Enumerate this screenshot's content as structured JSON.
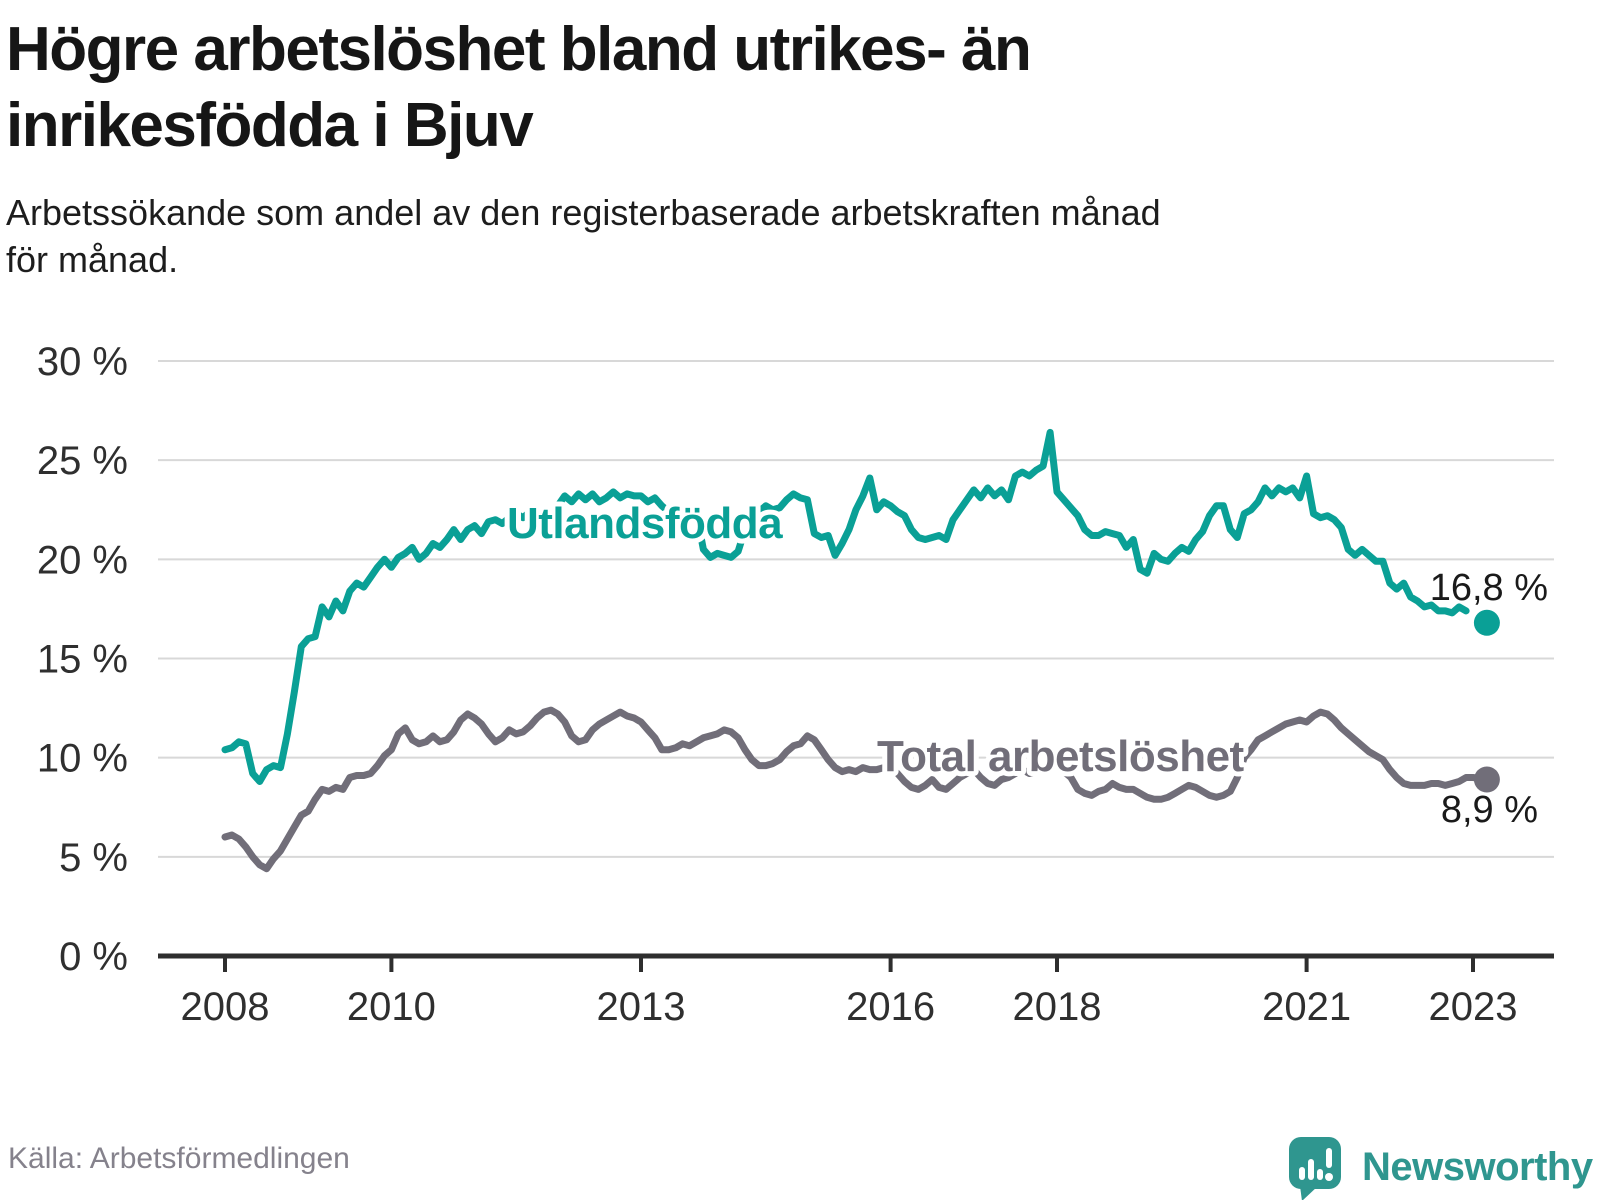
{
  "header": {
    "title_lines": [
      "Högre arbetslöshet bland utrikes- än",
      "inrikesfödda i Bjuv"
    ],
    "subtitle_lines": [
      "Arbetssökande som andel av den registerbaserade arbetskraften månad",
      "för månad."
    ]
  },
  "footer": {
    "source": "Källa: Arbetsförmedlingen",
    "brand": "Newsworthy"
  },
  "colors": {
    "teal": "#0aa096",
    "gray": "#716e79",
    "grid": "#d8d8d8",
    "axis": "#2e2e2e",
    "value_label": "#1a1a1a",
    "source_gray": "#85828c",
    "brand_teal": "#2f968f"
  },
  "chart_data": {
    "type": "line",
    "title": "Högre arbetslöshet bland utrikes- än inrikesfödda i Bjuv",
    "subtitle": "Arbetssökande som andel av den registerbaserade arbetskraften månad för månad.",
    "xlabel": "",
    "ylabel": "",
    "unit": "%",
    "grid": true,
    "legend_position": "inline-labels",
    "ylim": [
      0,
      30
    ],
    "y_ticks_pct": [
      0,
      5,
      10,
      15,
      20,
      25,
      30
    ],
    "y_tick_labels": [
      "0 %",
      "5 %",
      "10 %",
      "15 %",
      "20 %",
      "25 %",
      "30 %"
    ],
    "x_ticks": [
      2008,
      2010,
      2013,
      2016,
      2018,
      2021,
      2023
    ],
    "x_tick_labels": [
      "2008",
      "2010",
      "2013",
      "2016",
      "2018",
      "2021",
      "2023"
    ],
    "x_start": "2008-01",
    "frequency": "monthly",
    "series": [
      {
        "name": "Utlandsfödda",
        "color": "#0aa096",
        "latest": {
          "month": "2023-03",
          "value": 16.8,
          "label": "16,8 %"
        },
        "values": [
          10.4,
          10.5,
          10.8,
          10.7,
          9.2,
          8.8,
          9.4,
          9.6,
          9.5,
          11.2,
          13.3,
          15.6,
          16.0,
          16.1,
          17.6,
          17.1,
          17.9,
          17.4,
          18.4,
          18.8,
          18.6,
          19.1,
          19.6,
          20.0,
          19.6,
          20.1,
          20.3,
          20.6,
          20.0,
          20.3,
          20.8,
          20.6,
          21.0,
          21.5,
          21.0,
          21.5,
          21.7,
          21.3,
          21.9,
          22.0,
          21.8,
          22.1,
          22.3,
          22.1,
          22.4,
          22.2,
          22.5,
          22.3,
          22.7,
          23.2,
          22.9,
          23.3,
          23.0,
          23.3,
          22.9,
          23.1,
          23.4,
          23.1,
          23.3,
          23.2,
          23.2,
          22.9,
          23.1,
          22.7,
          22.4,
          22.6,
          22.5,
          22.4,
          22.3,
          20.5,
          20.1,
          20.3,
          20.2,
          20.1,
          20.4,
          21.5,
          22.5,
          22.4,
          22.7,
          22.5,
          22.6,
          23.0,
          23.3,
          23.1,
          23.0,
          21.3,
          21.1,
          21.2,
          20.2,
          20.8,
          21.5,
          22.5,
          23.2,
          24.1,
          22.5,
          22.9,
          22.7,
          22.4,
          22.2,
          21.5,
          21.1,
          21.0,
          21.1,
          21.2,
          21.0,
          22.0,
          22.5,
          23.0,
          23.5,
          23.1,
          23.6,
          23.2,
          23.5,
          23.0,
          24.2,
          24.4,
          24.2,
          24.5,
          24.7,
          26.4,
          23.4,
          23.0,
          22.6,
          22.2,
          21.5,
          21.2,
          21.2,
          21.4,
          21.3,
          21.2,
          20.6,
          21.0,
          19.5,
          19.3,
          20.3,
          20.0,
          19.9,
          20.3,
          20.6,
          20.4,
          21.0,
          21.4,
          22.2,
          22.7,
          22.7,
          21.5,
          21.1,
          22.3,
          22.5,
          22.9,
          23.6,
          23.2,
          23.6,
          23.4,
          23.6,
          23.1,
          24.2,
          22.3,
          22.1,
          22.2,
          22.0,
          21.6,
          20.5,
          20.2,
          20.5,
          20.2,
          19.9,
          19.9,
          18.8,
          18.5,
          18.8,
          18.1,
          17.9,
          17.6,
          17.7,
          17.4,
          17.4,
          17.3,
          17.6,
          17.4
        ]
      },
      {
        "name": "Total arbetslöshet",
        "color": "#716e79",
        "latest": {
          "month": "2023-03",
          "value": 8.9,
          "label": "8,9 %"
        },
        "values": [
          6.0,
          6.1,
          5.9,
          5.5,
          5.0,
          4.6,
          4.4,
          4.9,
          5.3,
          5.9,
          6.5,
          7.1,
          7.3,
          7.9,
          8.4,
          8.3,
          8.5,
          8.4,
          9.0,
          9.1,
          9.1,
          9.2,
          9.6,
          10.1,
          10.4,
          11.2,
          11.5,
          10.9,
          10.7,
          10.8,
          11.1,
          10.8,
          10.9,
          11.3,
          11.9,
          12.2,
          12.0,
          11.7,
          11.2,
          10.8,
          11.0,
          11.4,
          11.2,
          11.3,
          11.6,
          12.0,
          12.3,
          12.4,
          12.2,
          11.8,
          11.1,
          10.8,
          10.9,
          11.4,
          11.7,
          11.9,
          12.1,
          12.3,
          12.1,
          12.0,
          11.8,
          11.4,
          11.0,
          10.4,
          10.4,
          10.5,
          10.7,
          10.6,
          10.8,
          11.0,
          11.1,
          11.2,
          11.4,
          11.3,
          11.0,
          10.4,
          9.9,
          9.6,
          9.6,
          9.7,
          9.9,
          10.3,
          10.6,
          10.7,
          11.1,
          10.9,
          10.4,
          9.9,
          9.5,
          9.3,
          9.4,
          9.3,
          9.5,
          9.4,
          9.4,
          9.5,
          9.5,
          9.2,
          8.8,
          8.5,
          8.4,
          8.6,
          8.9,
          8.5,
          8.4,
          8.7,
          9.0,
          9.2,
          9.4,
          9.0,
          8.7,
          8.6,
          8.9,
          9.0,
          9.2,
          9.4,
          9.2,
          9.3,
          9.5,
          9.6,
          9.5,
          9.3,
          9.0,
          8.4,
          8.2,
          8.1,
          8.3,
          8.4,
          8.7,
          8.5,
          8.4,
          8.4,
          8.2,
          8.0,
          7.9,
          7.9,
          8.0,
          8.2,
          8.4,
          8.6,
          8.5,
          8.3,
          8.1,
          8.0,
          8.1,
          8.3,
          9.0,
          10.0,
          10.4,
          10.9,
          11.1,
          11.3,
          11.5,
          11.7,
          11.8,
          11.9,
          11.8,
          12.1,
          12.3,
          12.2,
          11.9,
          11.5,
          11.2,
          10.9,
          10.6,
          10.3,
          10.1,
          9.9,
          9.4,
          9.0,
          8.7,
          8.6,
          8.6,
          8.6,
          8.7,
          8.7,
          8.6,
          8.7,
          8.8,
          9.0,
          9.0,
          8.95
        ]
      }
    ]
  }
}
